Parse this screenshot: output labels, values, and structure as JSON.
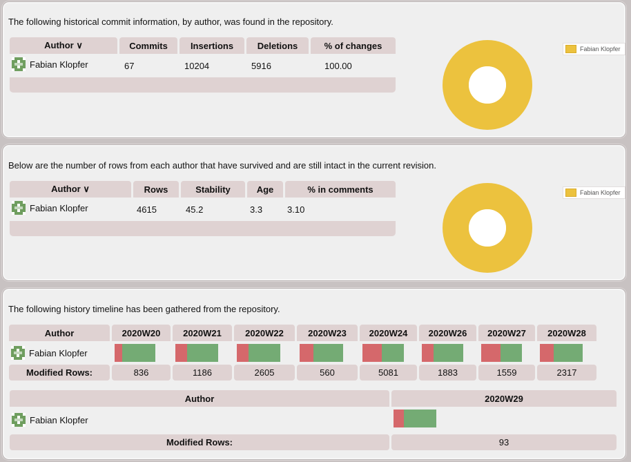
{
  "commits_section": {
    "intro": "The following historical commit information, by author, was found in the repository.",
    "headers": [
      "Author ∨",
      "Commits",
      "Insertions",
      "Deletions",
      "% of changes"
    ],
    "rows": [
      {
        "author": "Fabian Klopfer",
        "commits": "67",
        "insertions": "10204",
        "deletions": "5916",
        "percent": "100.00"
      }
    ],
    "legend": "Fabian Klopfer"
  },
  "blame_section": {
    "intro": "Below are the number of rows from each author that have survived and are still intact in the current revision.",
    "headers": [
      "Author ∨",
      "Rows",
      "Stability",
      "Age",
      "% in comments"
    ],
    "rows": [
      {
        "author": "Fabian Klopfer",
        "rows": "4615",
        "stability": "45.2",
        "age": "3.3",
        "comments": "3.10"
      }
    ],
    "legend": "Fabian Klopfer"
  },
  "timeline_section": {
    "intro": "The following history timeline has been gathered from the repository.",
    "author_header": "Author",
    "author": "Fabian Klopfer",
    "modified_label": "Modified Rows:",
    "weeks": [
      {
        "label": "2020W20",
        "modified": "836",
        "del_frac": 0.18,
        "total_frac": 0.7
      },
      {
        "label": "2020W21",
        "modified": "1186",
        "del_frac": 0.27,
        "total_frac": 0.72
      },
      {
        "label": "2020W22",
        "modified": "2605",
        "del_frac": 0.27,
        "total_frac": 0.72
      },
      {
        "label": "2020W23",
        "modified": "560",
        "del_frac": 0.32,
        "total_frac": 0.72
      },
      {
        "label": "2020W24",
        "modified": "5081",
        "del_frac": 0.47,
        "total_frac": 0.72
      },
      {
        "label": "2020W26",
        "modified": "1883",
        "del_frac": 0.28,
        "total_frac": 0.72
      },
      {
        "label": "2020W27",
        "modified": "1559",
        "del_frac": 0.47,
        "total_frac": 0.72
      },
      {
        "label": "2020W28",
        "modified": "2317",
        "del_frac": 0.32,
        "total_frac": 0.72
      }
    ],
    "second": {
      "label": "2020W29",
      "modified": "93",
      "del_frac": 0.24,
      "total_frac": 0.19
    }
  },
  "colors": {
    "donut": "#ecc23e",
    "deletions": "#d1595c",
    "insertions": "#74ab74",
    "header": "#dfd2d2"
  }
}
